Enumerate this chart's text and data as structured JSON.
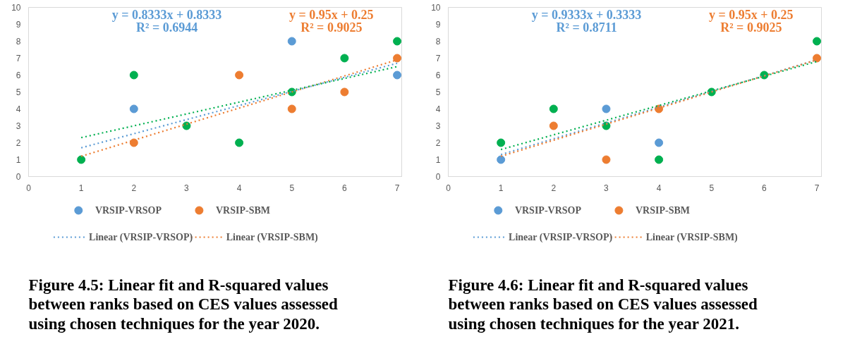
{
  "chart_data": [
    {
      "type": "scatter",
      "title": "Figure 4.5: Linear fit and R-squared values between ranks based on CES values assessed using chosen techniques for the year 2020.",
      "annotations": [
        "y = 0.8333x + 0.8333",
        "R² = 0.6944",
        "y = 0.95x + 0.25",
        "R² = 0.9025"
      ],
      "xlim": [
        0,
        7.1
      ],
      "xticks": [
        0,
        1,
        2,
        3,
        4,
        5,
        6,
        7
      ],
      "ylim": [
        0,
        10
      ],
      "yticks": [
        0,
        1,
        2,
        3,
        4,
        5,
        6,
        7,
        8,
        9,
        10
      ],
      "grid": false,
      "legend": "bottom",
      "marker": "circle",
      "series": [
        {
          "name": "VRSIP-VRSOP",
          "color": "#5b9bd5",
          "x": [
            2,
            5,
            7
          ],
          "values": [
            4,
            8,
            6
          ]
        },
        {
          "name": "VRSIP-SBM",
          "color": "#ed7d31",
          "x": [
            2,
            4,
            5,
            6,
            7
          ],
          "values": [
            2,
            6,
            4,
            5,
            7
          ]
        },
        {
          "color": "#00b050",
          "x": [
            1,
            2,
            3,
            4,
            5,
            6,
            7
          ],
          "values": [
            1,
            6,
            3,
            2,
            5,
            7,
            8
          ]
        },
        {
          "type": "line",
          "line_style": "dotted",
          "marker": "none",
          "name": "Linear (VRSIP-VRSOP)",
          "color": "#5b9bd5",
          "x": [
            1,
            7
          ],
          "values": [
            1.7,
            6.7
          ]
        },
        {
          "type": "line",
          "line_style": "dotted",
          "marker": "none",
          "name": "Linear (VRSIP-SBM)",
          "color": "#ed7d31",
          "x": [
            1,
            7
          ],
          "values": [
            1.2,
            6.9
          ]
        },
        {
          "type": "line",
          "line_style": "dotted",
          "marker": "none",
          "color": "#00b050",
          "x": [
            1,
            7
          ],
          "values": [
            2.3,
            6.5
          ]
        }
      ]
    },
    {
      "type": "scatter",
      "title": "Figure 4.6: Linear fit and R-squared values between ranks based on CES values assessed using chosen techniques for the year 2021.",
      "annotations": [
        "y = 0.9333x + 0.3333",
        "R² = 0.8711",
        "y = 0.95x + 0.25",
        "R² = 0.9025"
      ],
      "xlim": [
        0,
        7.1
      ],
      "xticks": [
        0,
        1,
        2,
        3,
        4,
        5,
        6,
        7
      ],
      "ylim": [
        0,
        10
      ],
      "yticks": [
        0,
        1,
        2,
        3,
        4,
        5,
        6,
        7,
        8,
        9,
        10
      ],
      "grid": false,
      "legend": "bottom",
      "marker": "circle",
      "series": [
        {
          "name": "VRSIP-VRSOP",
          "color": "#5b9bd5",
          "x": [
            1,
            3,
            4
          ],
          "values": [
            1,
            4,
            2
          ]
        },
        {
          "name": "VRSIP-SBM",
          "color": "#ed7d31",
          "x": [
            2,
            3,
            4,
            7
          ],
          "values": [
            3,
            1,
            4,
            7
          ]
        },
        {
          "color": "#00b050",
          "x": [
            1,
            2,
            3,
            4,
            5,
            6,
            7
          ],
          "values": [
            2,
            4,
            3,
            1,
            5,
            6,
            8
          ]
        },
        {
          "type": "line",
          "line_style": "dotted",
          "marker": "none",
          "name": "Linear (VRSIP-VRSOP)",
          "color": "#5b9bd5",
          "x": [
            1,
            7
          ],
          "values": [
            1.3,
            6.9
          ]
        },
        {
          "type": "line",
          "line_style": "dotted",
          "marker": "none",
          "name": "Linear (VRSIP-SBM)",
          "color": "#ed7d31",
          "x": [
            1,
            7
          ],
          "values": [
            1.2,
            6.9
          ]
        },
        {
          "type": "line",
          "line_style": "dotted",
          "marker": "none",
          "color": "#00b050",
          "x": [
            1,
            7
          ],
          "values": [
            1.6,
            6.8
          ]
        }
      ]
    }
  ]
}
